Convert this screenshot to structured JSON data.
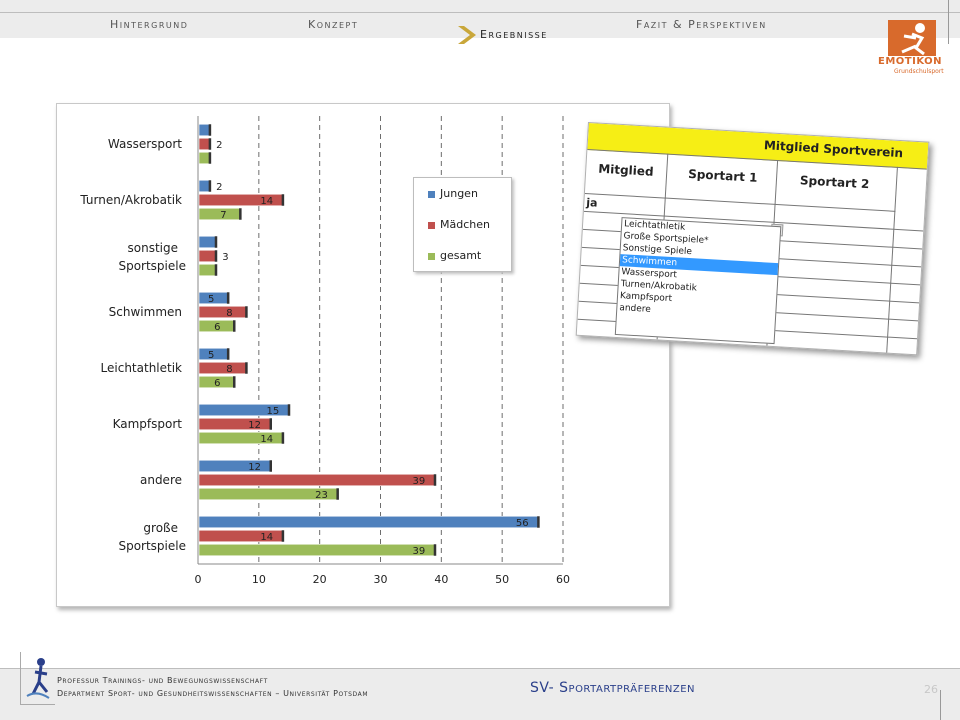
{
  "header": {
    "nav": [
      {
        "label": "Hintergrund",
        "active": false
      },
      {
        "label": "Konzept",
        "active": false
      },
      {
        "label": "Ergebnisse",
        "active": true
      },
      {
        "label": "Fazit & Perspektiven",
        "active": false
      }
    ],
    "logo_text": "EMOTIKON",
    "logo_sub": "Grundschulsport",
    "logo_color": "#d86a2c"
  },
  "chart_data": {
    "type": "bar",
    "orientation": "horizontal",
    "categories": [
      "Wassersport",
      "Turnen/Akrobatik",
      "sonstige Sportspiele",
      "Schwimmen",
      "Leichtathletik",
      "Kampfsport",
      "andere",
      "große Sportspiele"
    ],
    "series": [
      {
        "name": "Jungen",
        "color": "#4f81bd",
        "values": [
          2,
          2,
          3,
          5,
          5,
          15,
          12,
          56
        ],
        "labels": [
          "",
          "2",
          "",
          "5",
          "5",
          "15",
          "12",
          "56"
        ]
      },
      {
        "name": "Mädchen",
        "color": "#c0504d",
        "values": [
          2,
          14,
          3,
          8,
          8,
          12,
          39,
          14
        ],
        "labels": [
          "2",
          "14",
          "3",
          "8",
          "8",
          "12",
          "39",
          "14"
        ]
      },
      {
        "name": "gesamt",
        "color": "#9bbb59",
        "values": [
          2,
          7,
          3,
          6,
          6,
          14,
          23,
          39
        ],
        "labels": [
          "",
          "7",
          "",
          "6",
          "6",
          "14",
          "23",
          "39"
        ]
      }
    ],
    "xlim": [
      0,
      60
    ],
    "xticks": [
      0,
      10,
      20,
      30,
      40,
      50,
      60
    ],
    "grid": "vertical dashed",
    "legend": "top-center"
  },
  "table": {
    "title": "Mitglied Sportverein",
    "headers": [
      "Mitglied",
      "Sportart 1",
      "Sportart 2"
    ],
    "first_value": "ja",
    "dropdown_arrow": "▾",
    "dropdown_options": [
      "Leichtathletik",
      "Große Sportspiele*",
      "Sonstige Spiele",
      "Schwimmen",
      "Wassersport",
      "Turnen/Akrobatik",
      "Kampfsport",
      "andere"
    ],
    "dropdown_selected": "Schwimmen",
    "title_color": "#f6ee15"
  },
  "footer": {
    "line1": "Professur Trainings- und Bewegungswissenschaft",
    "line2": "Department Sport- und Gesundheitswissenschaften – Universität Potsdam",
    "title": "SV- Sportartpräferenzen",
    "page": "26"
  }
}
